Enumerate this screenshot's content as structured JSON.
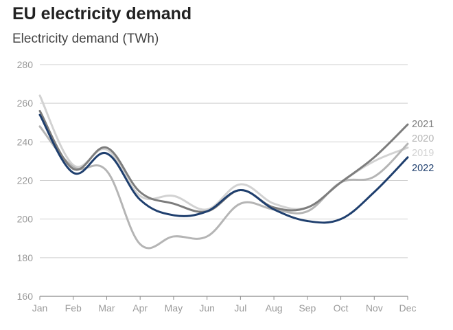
{
  "chart_data": {
    "type": "line",
    "title": "EU electricity demand",
    "subtitle": "Electricity demand (TWh)",
    "xlabel": "",
    "ylabel": "Electricity demand (TWh)",
    "categories": [
      "Jan",
      "Feb",
      "Mar",
      "Apr",
      "May",
      "Jun",
      "Jul",
      "Aug",
      "Sep",
      "Oct",
      "Nov",
      "Dec"
    ],
    "ylim": [
      160,
      280
    ],
    "yticks": [
      160,
      180,
      200,
      220,
      240,
      260,
      280
    ],
    "grid": true,
    "series": [
      {
        "name": "2019",
        "color": "#d2d2d2",
        "values": [
          264,
          228,
          236,
          212,
          212,
          205,
          218,
          208,
          206,
          219,
          230,
          237
        ]
      },
      {
        "name": "2020",
        "color": "#b5b5b5",
        "values": [
          248,
          227,
          225,
          187,
          191,
          191,
          208,
          205,
          204,
          219,
          222,
          239
        ]
      },
      {
        "name": "2021",
        "color": "#7d7d7d",
        "values": [
          256,
          226,
          237,
          214,
          208,
          204,
          215,
          206,
          206,
          219,
          232,
          249
        ]
      },
      {
        "name": "2022",
        "color": "#1f3f6e",
        "values": [
          254,
          224,
          234,
          210,
          202,
          204,
          215,
          205,
          199,
          200,
          214,
          232
        ]
      }
    ],
    "legend_order": [
      "2021",
      "2020",
      "2019",
      "2022"
    ]
  }
}
